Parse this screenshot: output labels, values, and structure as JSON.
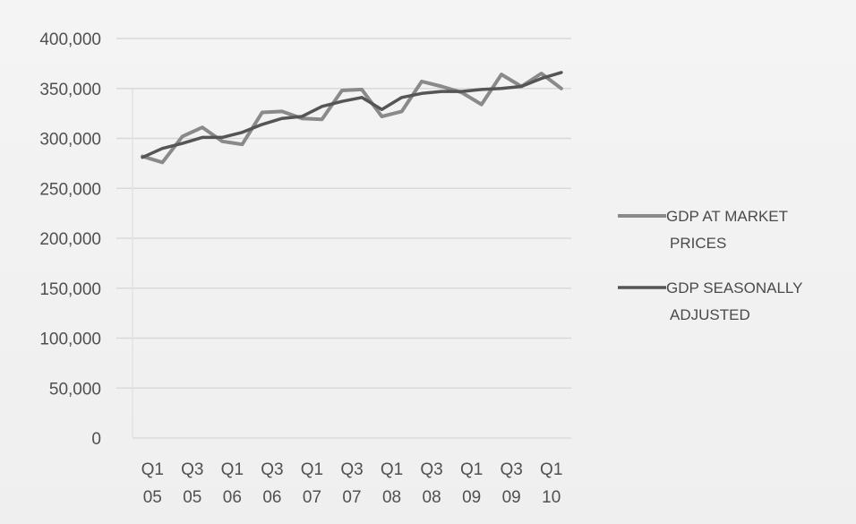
{
  "chart_data": {
    "type": "line",
    "title": "",
    "xlabel": "",
    "ylabel": "",
    "ylim": [
      0,
      400000
    ],
    "yticks": [
      "400,000",
      "350,000",
      "300,000",
      "250,000",
      "200,000",
      "150,000",
      "100,000",
      "50,000",
      "0"
    ],
    "categories": [
      {
        "q": "Q1",
        "y": "05"
      },
      {
        "q": "Q3",
        "y": "05"
      },
      {
        "q": "Q1",
        "y": "06"
      },
      {
        "q": "Q3",
        "y": "06"
      },
      {
        "q": "Q1",
        "y": "07"
      },
      {
        "q": "Q3",
        "y": "07"
      },
      {
        "q": "Q1",
        "y": "08"
      },
      {
        "q": "Q3",
        "y": "08"
      },
      {
        "q": "Q1",
        "y": "09"
      },
      {
        "q": "Q3",
        "y": "09"
      },
      {
        "q": "Q1",
        "y": "10"
      }
    ],
    "x": [
      "Q1 05",
      "Q2 05",
      "Q3 05",
      "Q4 05",
      "Q1 06",
      "Q2 06",
      "Q3 06",
      "Q4 06",
      "Q1 07",
      "Q2 07",
      "Q3 07",
      "Q4 07",
      "Q1 08",
      "Q2 08",
      "Q3 08",
      "Q4 08",
      "Q1 09",
      "Q2 09",
      "Q3 09",
      "Q4 09",
      "Q1 10",
      "Q2 10"
    ],
    "grid": true,
    "legend_position": "right",
    "series": [
      {
        "name_lines": [
          "GDP AT MARKET",
          "PRICES"
        ],
        "color": "#8a8a8a",
        "values": [
          282000,
          276000,
          302000,
          311000,
          297000,
          294000,
          326000,
          327000,
          320000,
          319000,
          348000,
          349000,
          322000,
          327000,
          357000,
          352000,
          346000,
          334000,
          364000,
          352000,
          365000,
          350000
        ]
      },
      {
        "name_lines": [
          "GDP SEASONALLY",
          "ADJUSTED"
        ],
        "color": "#555555",
        "values": [
          281000,
          290000,
          295000,
          301000,
          301000,
          306000,
          314000,
          320000,
          322000,
          332000,
          337000,
          341000,
          329000,
          341000,
          345000,
          347000,
          347000,
          349000,
          350000,
          352000,
          360000,
          366000
        ]
      }
    ]
  }
}
